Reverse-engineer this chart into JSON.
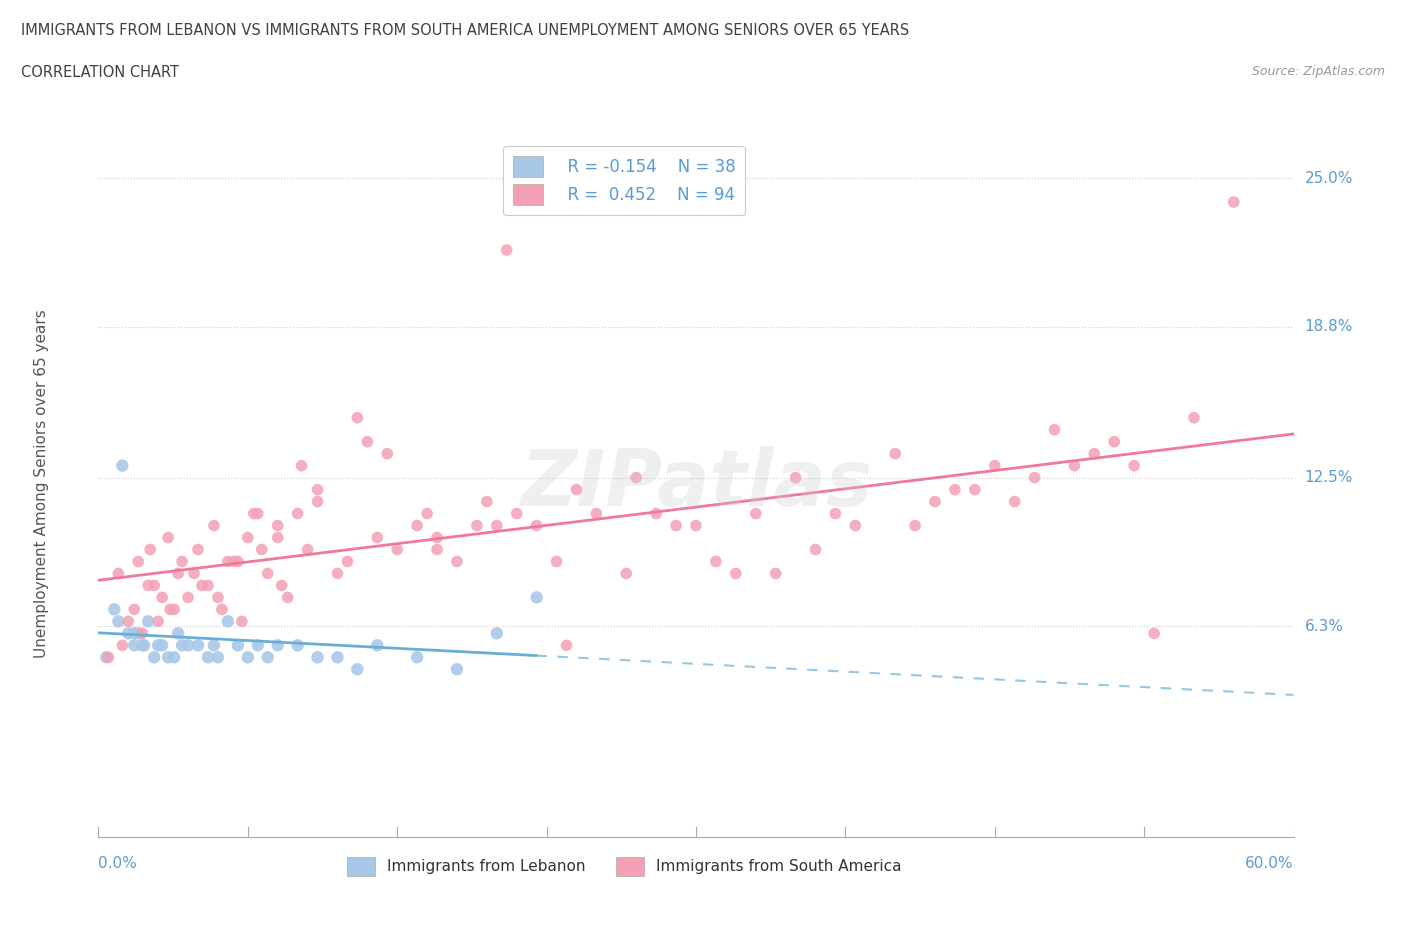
{
  "title_line1": "IMMIGRANTS FROM LEBANON VS IMMIGRANTS FROM SOUTH AMERICA UNEMPLOYMENT AMONG SENIORS OVER 65 YEARS",
  "title_line2": "CORRELATION CHART",
  "source_text": "Source: ZipAtlas.com",
  "ylabel": "Unemployment Among Seniors over 65 years",
  "ytick_labels": [
    "6.3%",
    "12.5%",
    "18.8%",
    "25.0%"
  ],
  "ytick_values": [
    6.3,
    12.5,
    18.8,
    25.0
  ],
  "xlim": [
    0.0,
    60.0
  ],
  "ylim": [
    -2.5,
    27.0
  ],
  "legend_r1": "R = -0.154",
  "legend_n1": "N = 38",
  "legend_r2": "R =  0.452",
  "legend_n2": "N = 94",
  "color_lebanon": "#a8c8e8",
  "color_south_america": "#f4a0b4",
  "color_trend_lebanon": "#6aaed6",
  "color_trend_south_america": "#f07898",
  "color_axis_labels": "#5b9bd5",
  "color_title": "#404040",
  "lebanon_x": [
    0.4,
    0.8,
    1.0,
    1.2,
    1.5,
    1.8,
    2.0,
    2.2,
    2.5,
    2.8,
    3.0,
    3.5,
    4.0,
    4.5,
    5.0,
    5.5,
    6.0,
    6.5,
    7.0,
    7.5,
    8.0,
    8.5,
    9.0,
    10.0,
    11.0,
    12.0,
    13.0,
    14.0,
    16.0,
    18.0,
    20.0,
    22.0,
    1.8,
    2.3,
    3.2,
    3.8,
    4.2,
    5.8
  ],
  "lebanon_y": [
    5.0,
    7.0,
    6.5,
    13.0,
    6.0,
    5.5,
    6.0,
    5.5,
    6.5,
    5.0,
    5.5,
    5.0,
    6.0,
    5.5,
    5.5,
    5.0,
    5.0,
    6.5,
    5.5,
    5.0,
    5.5,
    5.0,
    5.5,
    5.5,
    5.0,
    5.0,
    4.5,
    5.5,
    5.0,
    4.5,
    6.0,
    7.5,
    6.0,
    5.5,
    5.5,
    5.0,
    5.5,
    5.5
  ],
  "south_america_x": [
    0.5,
    1.0,
    1.5,
    2.0,
    2.5,
    3.0,
    3.5,
    3.8,
    4.0,
    4.5,
    5.0,
    5.5,
    6.0,
    6.5,
    7.0,
    7.5,
    8.0,
    8.5,
    9.0,
    9.5,
    10.0,
    10.5,
    11.0,
    12.0,
    13.0,
    14.0,
    15.0,
    16.0,
    17.0,
    18.0,
    19.0,
    20.0,
    21.0,
    22.0,
    23.0,
    25.0,
    27.0,
    30.0,
    33.0,
    35.0,
    38.0,
    40.0,
    42.0,
    45.0,
    47.0,
    50.0,
    52.0,
    55.0,
    2.2,
    2.8,
    3.2,
    4.2,
    5.2,
    6.2,
    7.2,
    8.2,
    9.2,
    11.0,
    13.5,
    16.5,
    19.5,
    24.0,
    28.0,
    32.0,
    36.0,
    43.0,
    48.0,
    1.2,
    1.8,
    2.6,
    3.6,
    4.8,
    5.8,
    6.8,
    7.8,
    9.0,
    10.2,
    12.5,
    14.5,
    17.0,
    20.5,
    23.5,
    26.5,
    31.0,
    34.0,
    37.0,
    41.0,
    44.0,
    46.0,
    49.0,
    51.0,
    53.0,
    57.0,
    29.0
  ],
  "south_america_y": [
    5.0,
    8.5,
    6.5,
    9.0,
    8.0,
    6.5,
    10.0,
    7.0,
    8.5,
    7.5,
    9.5,
    8.0,
    7.5,
    9.0,
    9.0,
    10.0,
    11.0,
    8.5,
    10.5,
    7.5,
    11.0,
    9.5,
    11.5,
    8.5,
    15.0,
    10.0,
    9.5,
    10.5,
    10.0,
    9.0,
    10.5,
    10.5,
    11.0,
    10.5,
    9.0,
    11.0,
    12.5,
    10.5,
    11.0,
    12.5,
    10.5,
    13.5,
    11.5,
    13.0,
    12.5,
    13.5,
    13.0,
    15.0,
    6.0,
    8.0,
    7.5,
    9.0,
    8.0,
    7.0,
    6.5,
    9.5,
    8.0,
    12.0,
    14.0,
    11.0,
    11.5,
    12.0,
    11.0,
    8.5,
    9.5,
    12.0,
    14.5,
    5.5,
    7.0,
    9.5,
    7.0,
    8.5,
    10.5,
    9.0,
    11.0,
    10.0,
    13.0,
    9.0,
    13.5,
    9.5,
    22.0,
    5.5,
    8.5,
    9.0,
    8.5,
    11.0,
    10.5,
    12.0,
    11.5,
    13.0,
    14.0,
    6.0,
    24.0,
    10.5
  ]
}
